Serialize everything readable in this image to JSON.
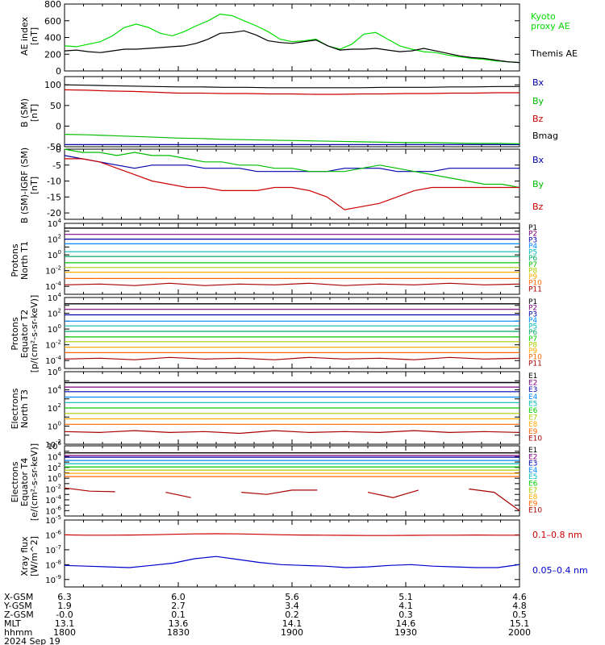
{
  "chart_data": [
    {
      "type": "line",
      "ylabel": "AE index [nT]",
      "ylim": [
        0,
        800
      ],
      "yticks": [
        0,
        200,
        400,
        600,
        800
      ],
      "yscale": "linear",
      "series": [
        {
          "name": "Kyoto proxy AE",
          "color": "#00dd00",
          "values": [
            300,
            290,
            320,
            350,
            420,
            520,
            560,
            520,
            450,
            420,
            470,
            540,
            600,
            680,
            660,
            600,
            540,
            470,
            380,
            350,
            360,
            380,
            300,
            260,
            320,
            440,
            460,
            380,
            300,
            260,
            230,
            220,
            190,
            170,
            150,
            140,
            120,
            110,
            100
          ]
        },
        {
          "name": "Themis AE",
          "color": "#000000",
          "values": [
            240,
            250,
            230,
            220,
            240,
            260,
            260,
            270,
            280,
            290,
            300,
            330,
            380,
            450,
            460,
            480,
            430,
            360,
            340,
            330,
            350,
            370,
            300,
            250,
            260,
            260,
            270,
            250,
            230,
            240,
            270,
            240,
            210,
            180,
            160,
            150,
            130,
            110,
            100
          ]
        }
      ]
    },
    {
      "type": "line",
      "ylabel": "B (SM) [nT]",
      "ylim": [
        -50,
        120
      ],
      "yticks": [
        -50,
        0,
        50,
        100
      ],
      "yscale": "linear",
      "series": [
        {
          "name": "Bx",
          "color": "#0000aa",
          "values": [
            -45,
            -45,
            -45,
            -45,
            -45,
            -45,
            -45,
            -45,
            -45,
            -45,
            -45,
            -45,
            -45,
            -45,
            -45,
            -45,
            -45,
            -45,
            -45,
            -45,
            -45
          ]
        },
        {
          "name": "By",
          "color": "#00bb00",
          "values": [
            -20,
            -21,
            -23,
            -25,
            -27,
            -29,
            -30,
            -32,
            -33,
            -34,
            -35,
            -36,
            -37,
            -38,
            -39,
            -40,
            -40,
            -41,
            -42,
            -42,
            -43
          ]
        },
        {
          "name": "Bz",
          "color": "#cc0000",
          "values": [
            88,
            87,
            85,
            84,
            82,
            80,
            80,
            79,
            79,
            78,
            78,
            77,
            77,
            78,
            78,
            79,
            79,
            80,
            80,
            81,
            81
          ]
        },
        {
          "name": "Bmag",
          "color": "#000000",
          "values": [
            100,
            99,
            98,
            97,
            96,
            95,
            95,
            94,
            94,
            93,
            93,
            93,
            93,
            93,
            94,
            94,
            94,
            95,
            95,
            96,
            96
          ]
        }
      ]
    },
    {
      "type": "line",
      "ylabel": "B (SM)-IGRF (SM) [nT]",
      "ylim": [
        -22,
        0
      ],
      "yticks": [
        -20,
        -15,
        -10,
        -5,
        0
      ],
      "yscale": "linear",
      "series": [
        {
          "name": "Bx",
          "color": "#0000aa",
          "values": [
            -2,
            -3,
            -4,
            -5,
            -6,
            -5,
            -5,
            -5,
            -6,
            -6,
            -6,
            -7,
            -7,
            -7,
            -7,
            -7,
            -6,
            -6,
            -6,
            -7,
            -7,
            -7,
            -6,
            -6,
            -6,
            -6,
            -6
          ]
        },
        {
          "name": "By",
          "color": "#00bb00",
          "values": [
            0,
            -1,
            -1,
            -2,
            -1,
            -2,
            -2,
            -3,
            -4,
            -4,
            -5,
            -5,
            -6,
            -6,
            -7,
            -7,
            -7,
            -6,
            -5,
            -6,
            -7,
            -8,
            -9,
            -10,
            -11,
            -11,
            -12
          ]
        },
        {
          "name": "Bz",
          "color": "#cc0000",
          "values": [
            -3,
            -3,
            -4,
            -6,
            -8,
            -10,
            -11,
            -12,
            -12,
            -13,
            -13,
            -13,
            -12,
            -12,
            -13,
            -15,
            -19,
            -18,
            -17,
            -15,
            -13,
            -12,
            -12,
            -12,
            -12,
            -12,
            -12
          ]
        }
      ]
    },
    {
      "type": "line",
      "ylabel": "Protons North T1",
      "ylim": [
        -5,
        4
      ],
      "yscale": "log",
      "ytick_exponents": [
        -4,
        -2,
        0,
        2,
        4
      ],
      "channel_labels": [
        "P1",
        "P2",
        "P3",
        "P4",
        "P5",
        "P6",
        "P7",
        "P8",
        "P9",
        "P10",
        "P11"
      ],
      "channel_colors": [
        "#000000",
        "#800080",
        "#0000aa",
        "#0088ff",
        "#00bbbb",
        "#00aa66",
        "#00cc00",
        "#aacc00",
        "#ffaa00",
        "#ff6600",
        "#aa0000"
      ],
      "channel_levels_log10": [
        3.4,
        2.6,
        2.0,
        1.4,
        0.4,
        -0.2,
        -1.0,
        -1.6,
        -2.2,
        -3.0,
        -3.8
      ],
      "series": [
        {
          "name": "P1",
          "values": [
            3.4,
            3.4,
            3.4,
            3.4,
            3.4,
            3.4,
            3.4,
            3.4,
            3.4,
            3.4,
            3.4,
            3.4,
            3.4,
            3.4
          ]
        },
        {
          "name": "P11",
          "values": [
            -3.8,
            -3.7,
            -3.9,
            -3.6,
            -3.9,
            -3.7,
            -3.8,
            -3.6,
            -3.9,
            -3.7,
            -3.8,
            -3.6,
            -3.8,
            -3.7
          ]
        }
      ]
    },
    {
      "type": "line",
      "ylabel": "Protons Equator T2 [p/(cm²-s-sr-keV)]",
      "ylim": [
        -5,
        4
      ],
      "yscale": "log",
      "ytick_exponents": [
        -4,
        -2,
        0,
        2,
        4
      ],
      "channel_labels": [
        "P1",
        "P2",
        "P3",
        "P4",
        "P5",
        "P6",
        "P7",
        "P8",
        "P9",
        "P10",
        "P11"
      ],
      "channel_colors": [
        "#000000",
        "#800080",
        "#0000aa",
        "#0088ff",
        "#00bbbb",
        "#00aa66",
        "#00cc00",
        "#aacc00",
        "#ffaa00",
        "#ff6600",
        "#aa0000"
      ],
      "channel_levels_log10": [
        3.2,
        2.5,
        1.8,
        1.0,
        0.4,
        -0.3,
        -1.0,
        -1.6,
        -2.3,
        -3.0,
        -3.8
      ],
      "series": [
        {
          "name": "P1",
          "values": [
            3.2,
            3.2,
            3.2,
            3.2,
            3.2,
            3.2,
            3.2,
            3.2,
            3.2,
            3.2,
            3.2,
            3.2,
            3.2,
            3.2
          ]
        },
        {
          "name": "P11",
          "values": [
            -3.8,
            -3.7,
            -3.9,
            -3.6,
            -3.8,
            -3.7,
            -3.9,
            -3.6,
            -3.8,
            -3.7,
            -3.9,
            -3.6,
            -3.8,
            -3.7
          ]
        }
      ]
    },
    {
      "type": "line",
      "ylabel": "Electrons North T3",
      "ylim": [
        -2,
        6
      ],
      "yscale": "log",
      "ytick_exponents": [
        -2,
        0,
        2,
        4,
        6
      ],
      "channel_labels": [
        "E1",
        "E2",
        "E3",
        "E4",
        "E5",
        "E6",
        "E7",
        "E8",
        "E9",
        "E10"
      ],
      "channel_colors": [
        "#000000",
        "#800080",
        "#0000aa",
        "#0088ff",
        "#00bbbb",
        "#00cc00",
        "#aacc00",
        "#ffaa00",
        "#ff6600",
        "#aa0000"
      ],
      "channel_levels_log10": [
        4.8,
        4.3,
        3.8,
        3.2,
        2.6,
        2.0,
        1.4,
        0.8,
        0.2,
        -0.6
      ],
      "series": [
        {
          "name": "E1",
          "values": [
            4.8,
            4.8,
            4.8,
            4.8,
            4.8,
            4.8,
            4.8,
            4.8,
            4.8,
            4.8,
            4.8,
            4.8,
            4.8,
            4.8
          ]
        },
        {
          "name": "E10",
          "values": [
            -0.6,
            -0.7,
            -0.5,
            -0.7,
            -0.6,
            -0.8,
            -0.5,
            -0.7,
            -0.6,
            -0.7,
            -0.5,
            -0.7,
            -0.6,
            -0.7
          ]
        }
      ]
    },
    {
      "type": "line",
      "ylabel": "Electrons Equator T4 [e/(cm²-s-sr-keV)]",
      "ylim": [
        -7,
        6
      ],
      "yscale": "log",
      "ytick_exponents": [
        -6,
        -4,
        -2,
        0,
        2,
        4,
        6
      ],
      "channel_labels": [
        "E1",
        "E2",
        "E3",
        "E4",
        "E5",
        "E6",
        "E7",
        "E8",
        "E9",
        "E10"
      ],
      "channel_colors": [
        "#000000",
        "#800080",
        "#0000aa",
        "#0088ff",
        "#00bbbb",
        "#00cc00",
        "#aacc00",
        "#ffaa00",
        "#ff6600",
        "#aa0000"
      ],
      "channel_levels_log10": [
        4.7,
        4.2,
        3.9,
        3.3,
        2.7,
        2.1,
        1.5,
        0.9,
        0.3,
        -2.0
      ],
      "series": [
        {
          "name": "E1",
          "values": [
            4.7,
            4.7,
            4.7,
            4.7,
            4.7,
            4.7,
            4.7,
            4.7,
            4.7,
            4.7,
            4.7,
            4.7,
            4.7,
            4.7
          ]
        },
        {
          "name": "E10",
          "values": [
            -1.8,
            -2.4,
            -2.5,
            null,
            -2.6,
            -3.6,
            null,
            -2.6,
            -3.0,
            -2.2,
            -2.2,
            null,
            -2.6,
            -3.6,
            -2.2,
            null,
            -2.0,
            -2.6,
            -6.0
          ]
        }
      ]
    },
    {
      "type": "line",
      "ylabel": "Xray flux [W/m^2]",
      "ylim": [
        -9.5,
        -5
      ],
      "yscale": "log",
      "ytick_exponents": [
        -9,
        -8,
        -7,
        -6,
        -5
      ],
      "series": [
        {
          "name": "0.1-0.8 nm",
          "color": "#cc0000",
          "values": [
            -6.0,
            -6.02,
            -6.02,
            -6.01,
            -5.99,
            -5.96,
            -5.93,
            -5.92,
            -5.93,
            -5.96,
            -5.99,
            -6.01,
            -6.02,
            -6.03,
            -6.04,
            -6.04,
            -6.03,
            -6.02,
            -6.02,
            -6.01,
            -6.02,
            -6.02
          ]
        },
        {
          "name": "0.05-0.4 nm",
          "color": "#0000cc",
          "values": [
            -8.05,
            -8.1,
            -8.15,
            -8.2,
            -8.05,
            -7.9,
            -7.6,
            -7.45,
            -7.65,
            -7.85,
            -8.0,
            -8.05,
            -8.1,
            -8.2,
            -8.15,
            -8.05,
            -8.0,
            -8.1,
            -8.15,
            -8.2,
            -8.2,
            -8.0
          ]
        }
      ]
    }
  ],
  "panel_labels": [
    [
      "AE index",
      "[nT]"
    ],
    [
      "B (SM)",
      "[nT]"
    ],
    [
      "B (SM)-IGRF (SM)",
      "[nT]"
    ],
    [
      "Protons",
      "North T1"
    ],
    [
      "Protons",
      "Equator T2",
      "[p/(cm²-s-sr-keV)]"
    ],
    [
      "Electrons",
      "North T3"
    ],
    [
      "Electrons",
      "Equator T4",
      "[e/(cm²-s-sr-keV)]"
    ],
    [
      "Xray flux",
      "[W/m^2]"
    ]
  ],
  "legends": {
    "ae": [
      "Kyoto",
      "proxy AE",
      "Themis AE"
    ],
    "b": [
      "Bx",
      "By",
      "Bz",
      "Bmag"
    ],
    "db": [
      "Bx",
      "By",
      "Bz"
    ],
    "xray": [
      "0.1–0.8 nm",
      "0.05–0.4 nm"
    ]
  },
  "axis": {
    "row_names": [
      "X-GSM",
      "Y-GSM",
      "Z-GSM",
      "MLT",
      "hhmm"
    ],
    "columns": [
      [
        "6.3",
        "1.9",
        "-0.0",
        "13.1",
        "1800"
      ],
      [
        "6.0",
        "2.7",
        "0.1",
        "13.6",
        "1830"
      ],
      [
        "5.6",
        "3.4",
        "0.2",
        "14.1",
        "1900"
      ],
      [
        "5.1",
        "4.1",
        "0.3",
        "14.6",
        "1930"
      ],
      [
        "4.6",
        "4.8",
        "0.5",
        "15.1",
        "2000"
      ]
    ],
    "date": "2024 Sep 19"
  }
}
